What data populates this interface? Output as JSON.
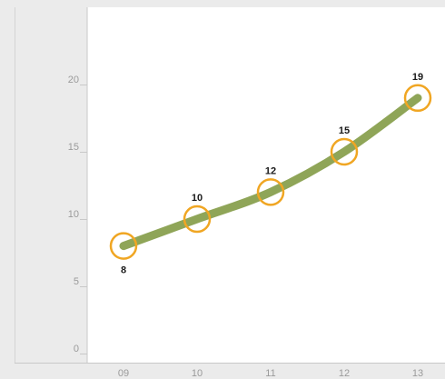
{
  "chart_data": {
    "type": "line",
    "categories": [
      "09",
      "10",
      "11",
      "12",
      "13"
    ],
    "values": [
      8,
      10,
      12,
      15,
      19
    ],
    "data_labels": [
      "8",
      "10",
      "12",
      "15",
      "19"
    ],
    "y_ticks": [
      "0",
      "5",
      "10",
      "15",
      "20"
    ],
    "ylim": [
      0,
      25
    ],
    "title": "",
    "xlabel": "",
    "ylabel": "",
    "grid": false,
    "legend": "none",
    "colors": {
      "background": "#ebebeb",
      "plot_area": "#ffffff",
      "line": "#8fa558",
      "marker": "#f0a623",
      "axis": "#c8c8c8",
      "tick_text": "#9a9a9a",
      "label_text": "#1a1a1a"
    }
  }
}
